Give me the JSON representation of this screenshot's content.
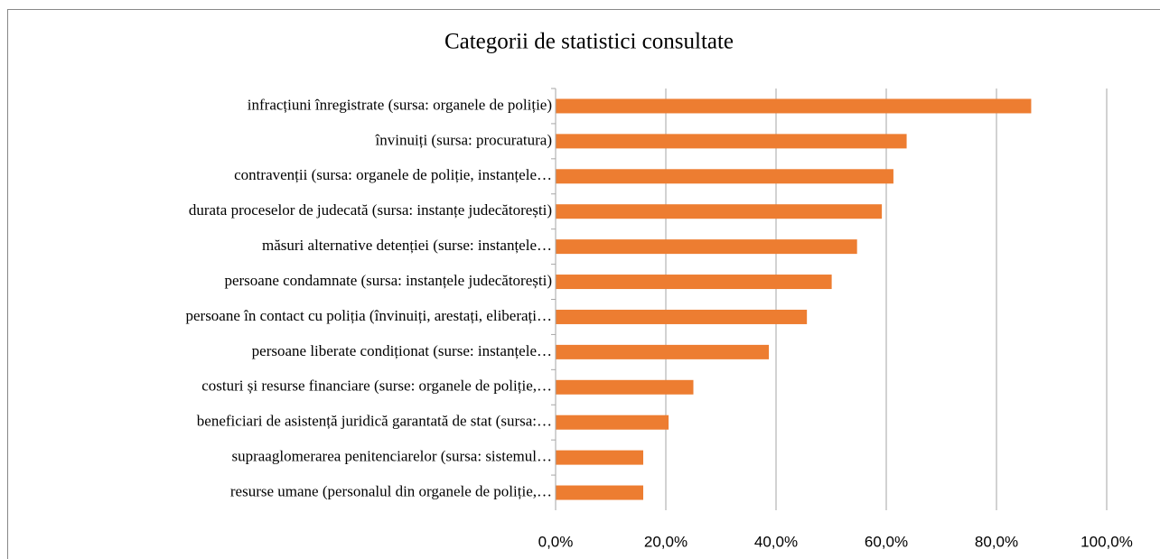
{
  "chart_data": {
    "type": "barh",
    "title": "Categorii de statistici consultate",
    "categories": [
      "infracțiuni înregistrate (sursa:  organele de poliție)",
      "învinuiți (sursa: procuratura)",
      "contravenții (sursa:  organele de poliție, instanțele…",
      "durata proceselor de judecată (sursa: instanțe judecătorești)",
      "măsuri alternative detenției (surse: instanțele…",
      "persoane condamnate (sursa: instanțele judecătorești)",
      "persoane în contact cu poliția (învinuiți, arestați, eliberați…",
      "persoane liberate condiționat (surse: instanțele…",
      "costuri și resurse financiare (surse: organele de poliție,…",
      "beneficiari de asistență juridică garantată de stat (sursa:…",
      "supraaglomerarea penitenciarelor (sursa: sistemul…",
      "resurse umane (personalul din organele de poliție,…"
    ],
    "values": [
      86.3,
      63.7,
      61.3,
      59.2,
      54.7,
      50.1,
      45.6,
      38.7,
      25.0,
      20.5,
      15.9,
      15.9
    ],
    "color": "#ed7d31",
    "xlim": [
      0,
      100
    ],
    "xticks": [
      {
        "value": 0,
        "label": "0,0%"
      },
      {
        "value": 20,
        "label": "20,0%"
      },
      {
        "value": 40,
        "label": "40,0%"
      },
      {
        "value": 60,
        "label": "60,0%"
      },
      {
        "value": 80,
        "label": "80,0%"
      },
      {
        "value": 100,
        "label": "100,0%"
      }
    ],
    "grid": true
  }
}
